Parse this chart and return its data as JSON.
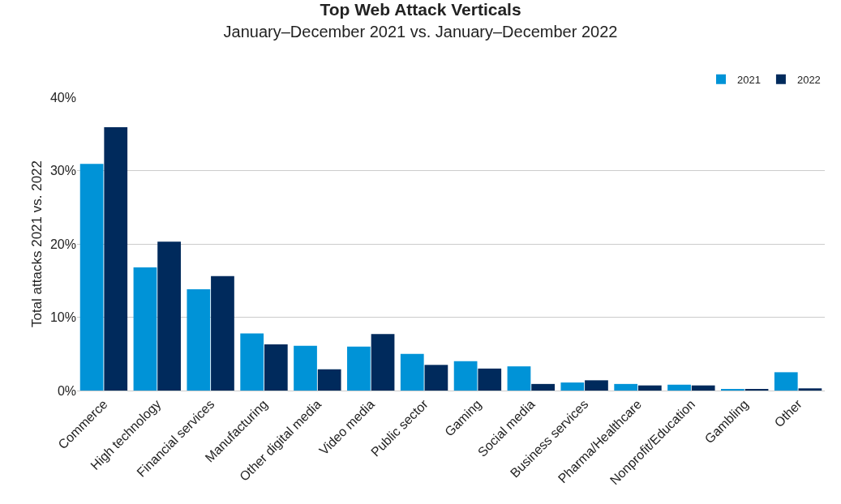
{
  "chart_data": {
    "type": "bar",
    "title": "Top Web Attack Verticals",
    "subtitle": "January–December 2021 vs. January–December 2022",
    "ylabel": "Total attacks 2021 vs. 2022",
    "categories": [
      "Commerce",
      "High technology",
      "Financial services",
      "Manufacturing",
      "Other digital media",
      "Video media",
      "Public sector",
      "Gaming",
      "Social media",
      "Business services",
      "Pharma/Healthcare",
      "Nonprofit/Education",
      "Gambling",
      "Other"
    ],
    "series": [
      {
        "name": "2021",
        "color": "#0093d7",
        "values": [
          30.9,
          16.8,
          13.8,
          7.8,
          6.1,
          6.0,
          5.0,
          4.0,
          3.3,
          1.1,
          0.9,
          0.8,
          0.2,
          2.5
        ]
      },
      {
        "name": "2022",
        "color": "#002a5c",
        "values": [
          35.9,
          20.3,
          15.6,
          6.3,
          2.9,
          7.7,
          3.5,
          3.0,
          0.9,
          1.4,
          0.7,
          0.7,
          0.2,
          0.3
        ]
      }
    ],
    "ylim": [
      0,
      40
    ],
    "yticks": [
      {
        "value": 0,
        "label": "0%"
      },
      {
        "value": 10,
        "label": "10%"
      },
      {
        "value": 20,
        "label": "20%"
      },
      {
        "value": 30,
        "label": "30%"
      },
      {
        "value": 40,
        "label": "40%"
      }
    ],
    "grid": "y",
    "legend": "top right"
  }
}
